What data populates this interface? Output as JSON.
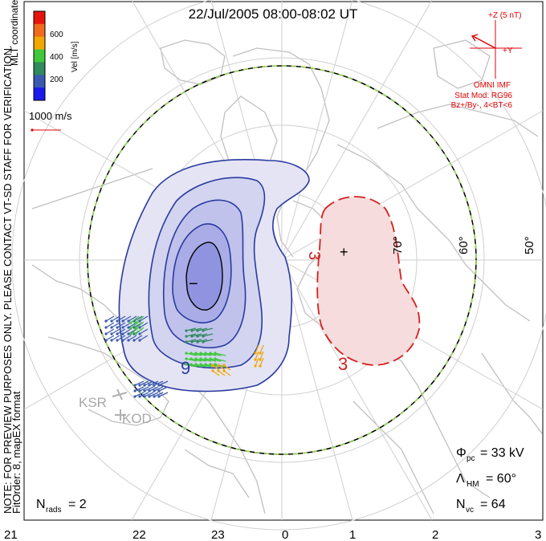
{
  "title": "22/Jul/2005 08:00-08:02 UT",
  "side_note": "NOTE: FOR PREVIEW PURPOSES ONLY. PLEASE CONTACT VT-SD STAFF FOR VERIFICATION.",
  "fit_order": "FitOrder: 8, mapEX format",
  "coordinates": "MLT coordinates",
  "velocity_scale": {
    "label": "Vel [m/s]",
    "ticks": [
      "600",
      "400",
      "200"
    ],
    "colors": [
      "#e8140c",
      "#f26b1c",
      "#f2a800",
      "#3ec83a",
      "#2f8a5c",
      "#3a5ab0",
      "#1a1aee"
    ]
  },
  "vector_scale": "1000 m/s",
  "imf": {
    "axis_z": "+Z (5 nT)",
    "axis_y": "+Y",
    "source": "OMNI IMF",
    "model": "Stat Mod: RG96",
    "condition": "Bz+/By-, 4<BT<6",
    "color": "#e00000"
  },
  "latitude_labels": [
    "70°",
    "60°",
    "50°"
  ],
  "mlt_ticks": [
    "21",
    "22",
    "23",
    "0",
    "1",
    "2",
    "3"
  ],
  "stations": [
    "KSR",
    "KOD"
  ],
  "contours": {
    "negative_label": "9",
    "positive_label": "3",
    "positive_label_top": "3",
    "min_marker": "−",
    "max_marker": "+"
  },
  "stats": {
    "phi_pc_label": "Φ",
    "phi_pc_sub": "pc",
    "phi_pc_value": "= 33 kV",
    "lambda_hm_label": "Λ",
    "lambda_hm_sub": "HM",
    "lambda_hm_value": "= 60°",
    "nvc_label": "N",
    "nvc_sub": "vc",
    "nvc_value": "= 64",
    "nrads_label": "N",
    "nrads_sub": "rads",
    "nrads_value": "= 2"
  }
}
